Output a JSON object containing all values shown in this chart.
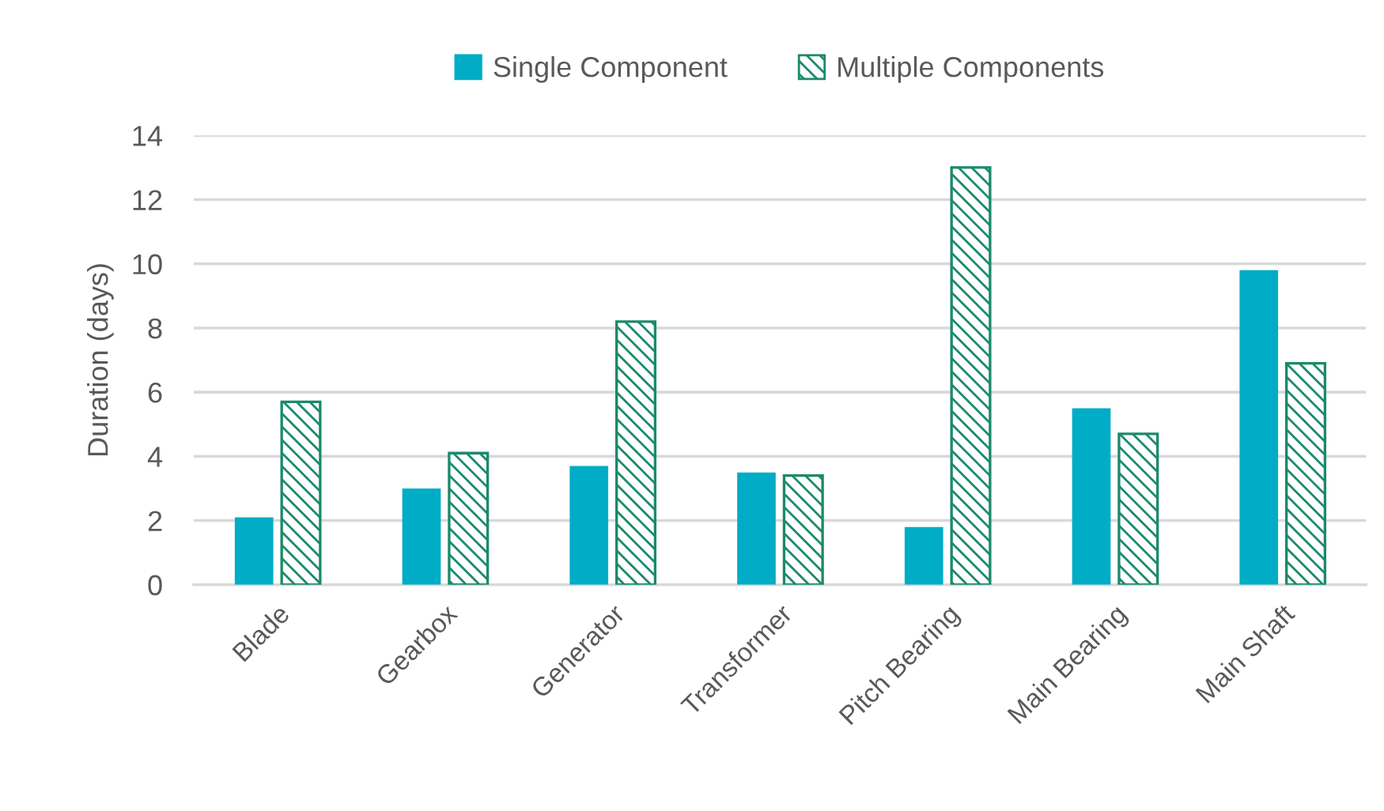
{
  "chart_data": {
    "type": "bar",
    "ylabel": "Duration (days)",
    "categories": [
      "Blade",
      "Gearbox",
      "Generator",
      "Transformer",
      "Pitch Bearing",
      "Main Bearing",
      "Main Shaft"
    ],
    "series": [
      {
        "name": "Single Component",
        "color": "#00acc6",
        "values": [
          2.1,
          3.0,
          3.7,
          3.5,
          1.8,
          5.5,
          9.8
        ]
      },
      {
        "name": "Multiple Components",
        "color": "#1b8a6b",
        "values": [
          5.7,
          4.1,
          8.2,
          3.4,
          13.0,
          4.7,
          6.9
        ]
      }
    ],
    "ylim": [
      0,
      14
    ],
    "yticks": [
      0,
      2,
      4,
      6,
      8,
      10,
      12,
      14
    ],
    "grid": "y",
    "legend": "top"
  }
}
